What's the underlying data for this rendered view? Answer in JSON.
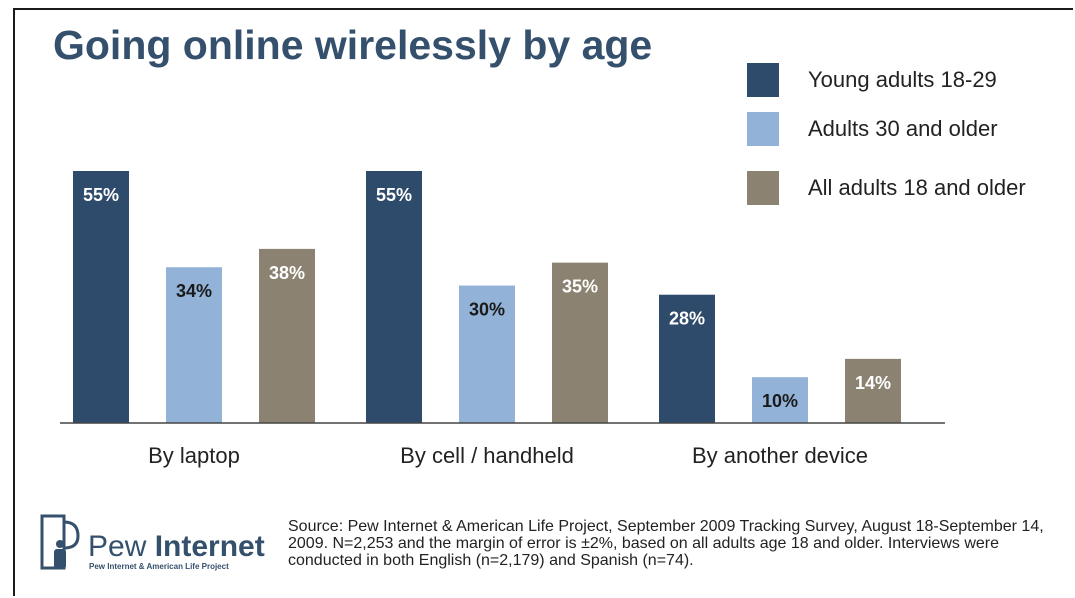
{
  "chart_data": {
    "type": "bar",
    "title": "Going online wirelessly by age",
    "categories": [
      "By laptop",
      "By cell / handheld",
      "By another device"
    ],
    "series": [
      {
        "name": "Young adults 18-29",
        "values": [
          55,
          55,
          28
        ],
        "labels": [
          "55%",
          "55%",
          "28%"
        ],
        "color": "#2f4b6b",
        "label_color": "#ffffff"
      },
      {
        "name": "Adults 30 and older",
        "values": [
          34,
          30,
          10
        ],
        "labels": [
          "34%",
          "30%",
          "10%"
        ],
        "color": "#92b3d7",
        "label_color": "#1a1a1a"
      },
      {
        "name": "All adults 18 and older",
        "values": [
          38,
          35,
          14
        ],
        "labels": [
          "38%",
          "35%",
          "14%"
        ],
        "color": "#8c8271",
        "label_color": "#ffffff"
      }
    ],
    "ylim": [
      0,
      55
    ],
    "grid": false,
    "legend": "top-right",
    "xlabel": "",
    "ylabel": ""
  },
  "source": "Source: Pew Internet & American Life Project, September 2009 Tracking Survey, August 18-September 14, 2009. N=2,253 and the margin of error is ±2%, based on all adults age 18 and older. Interviews were conducted in both English (n=2,179) and Spanish (n=74).",
  "logo": {
    "name_light": "Pew ",
    "name_bold": "Internet",
    "tagline": "Pew Internet & American Life Project"
  },
  "colors": {
    "title": "#34506c",
    "axis": "#444444"
  }
}
